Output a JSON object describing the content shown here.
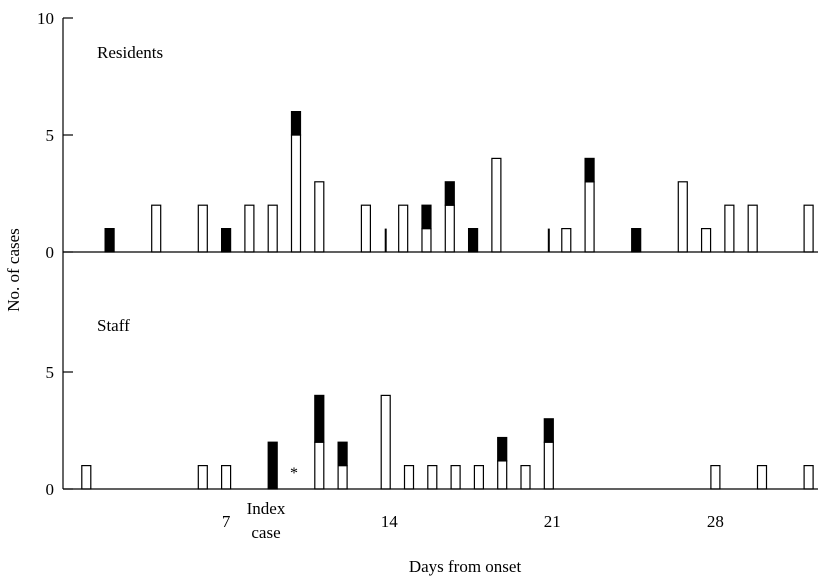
{
  "chart_data": [
    {
      "type": "bar",
      "panel": "Residents",
      "panel_label": "Residents",
      "ylabel": "No. of cases",
      "ylim": [
        0,
        10
      ],
      "yticks": [
        0,
        5,
        10
      ],
      "stack_order": [
        "open",
        "filled"
      ],
      "bars": [
        {
          "day": 2,
          "open": 0,
          "filled": 1
        },
        {
          "day": 4,
          "open": 2,
          "filled": 0
        },
        {
          "day": 6,
          "open": 2,
          "filled": 0
        },
        {
          "day": 7,
          "open": 0,
          "filled": 1
        },
        {
          "day": 8,
          "open": 2,
          "filled": 0
        },
        {
          "day": 9,
          "open": 2,
          "filled": 0
        },
        {
          "day": 10,
          "open": 5,
          "filled": 1
        },
        {
          "day": 11,
          "open": 3,
          "filled": 0
        },
        {
          "day": 13,
          "open": 2,
          "filled": 0
        },
        {
          "day": 13.85,
          "open": 1,
          "filled": 0,
          "thin": true
        },
        {
          "day": 14.6,
          "open": 2,
          "filled": 0
        },
        {
          "day": 15.6,
          "open": 1,
          "filled": 1
        },
        {
          "day": 16.6,
          "open": 2,
          "filled": 1
        },
        {
          "day": 17.6,
          "open": 0,
          "filled": 1
        },
        {
          "day": 18.6,
          "open": 4,
          "filled": 0
        },
        {
          "day": 20.85,
          "open": 1,
          "filled": 0,
          "thin": true
        },
        {
          "day": 21.6,
          "open": 1,
          "filled": 0
        },
        {
          "day": 22.6,
          "open": 3,
          "filled": 1
        },
        {
          "day": 24.6,
          "open": 0,
          "filled": 1
        },
        {
          "day": 26.6,
          "open": 3,
          "filled": 0
        },
        {
          "day": 27.6,
          "open": 1,
          "filled": 0
        },
        {
          "day": 28.6,
          "open": 2,
          "filled": 0
        },
        {
          "day": 29.6,
          "open": 2,
          "filled": 0
        },
        {
          "day": 32,
          "open": 2,
          "filled": 0
        }
      ]
    },
    {
      "type": "bar",
      "panel": "Staff",
      "panel_label": "Staff",
      "ylabel": "No. of cases",
      "ylim": [
        0,
        5
      ],
      "yticks": [
        0,
        5
      ],
      "stack_order": [
        "open",
        "filled"
      ],
      "bars": [
        {
          "day": 1,
          "open": 1,
          "filled": 0
        },
        {
          "day": 6,
          "open": 1,
          "filled": 0
        },
        {
          "day": 7,
          "open": 1,
          "filled": 0
        },
        {
          "day": 9,
          "open": 0,
          "filled": 2
        },
        {
          "day": 11,
          "open": 2,
          "filled": 2
        },
        {
          "day": 12,
          "open": 1,
          "filled": 1
        },
        {
          "day": 13.85,
          "open": 4,
          "filled": 0
        },
        {
          "day": 14.85,
          "open": 1,
          "filled": 0
        },
        {
          "day": 15.85,
          "open": 1,
          "filled": 0
        },
        {
          "day": 16.85,
          "open": 1,
          "filled": 0
        },
        {
          "day": 17.85,
          "open": 1,
          "filled": 0
        },
        {
          "day": 18.85,
          "open": 1.2,
          "filled": 1
        },
        {
          "day": 19.85,
          "open": 1,
          "filled": 0
        },
        {
          "day": 20.85,
          "open": 2,
          "filled": 1
        },
        {
          "day": 28,
          "open": 1,
          "filled": 0
        },
        {
          "day": 30,
          "open": 1,
          "filled": 0
        },
        {
          "day": 32,
          "open": 1,
          "filled": 0
        }
      ],
      "annotations": [
        {
          "text": "*",
          "day": 10
        }
      ]
    }
  ],
  "x_axis": {
    "xlabel": "Days from onset",
    "xticks": [
      7,
      14,
      21,
      28
    ],
    "xlim": [
      0,
      34
    ]
  },
  "index_case_label": [
    "Index",
    "case"
  ],
  "colors": {
    "filled": "#000000",
    "open": "#ffffff",
    "outline": "#000000"
  }
}
